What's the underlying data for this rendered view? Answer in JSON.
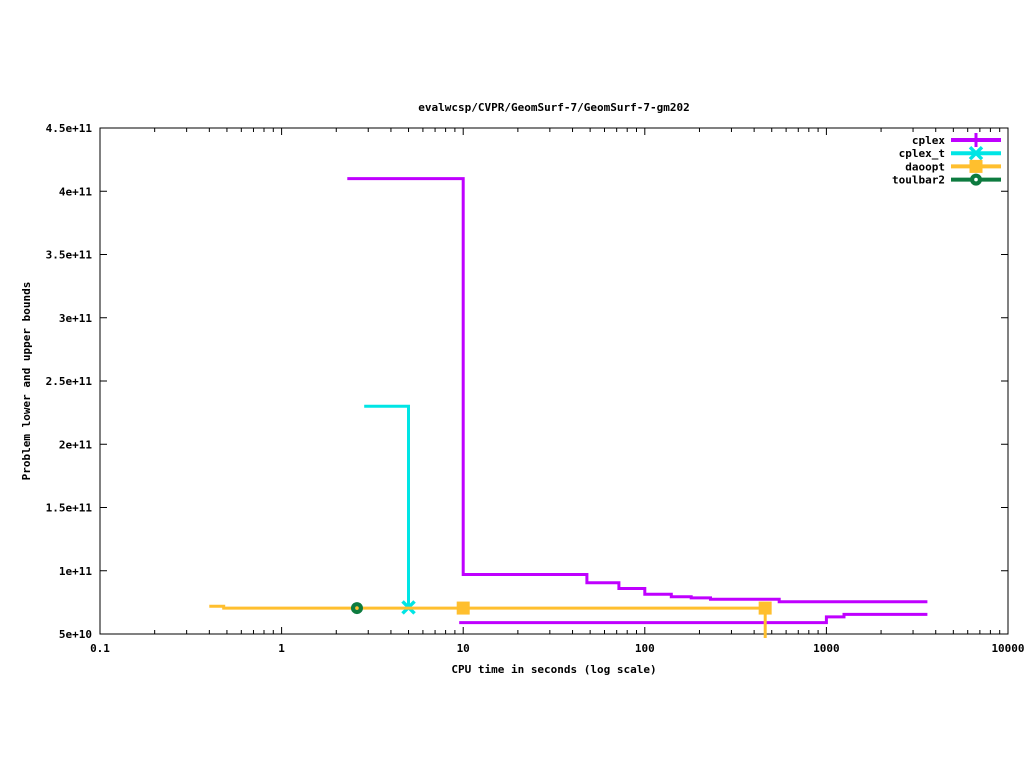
{
  "chart_data": {
    "type": "line",
    "title": "evalwcsp/CVPR/GeomSurf-7/GeomSurf-7-gm202",
    "xlabel": "CPU time in seconds (log scale)",
    "ylabel": "Problem lower and upper bounds",
    "x_scale": "log",
    "y_scale": "linear",
    "grid": false,
    "legend_position": "top-right-inside",
    "xlim": [
      0.1,
      10000
    ],
    "ylim": [
      50000000000.0,
      450000000000.0
    ],
    "x_ticks": [
      {
        "t": 0.1,
        "label": "0.1"
      },
      {
        "t": 1,
        "label": "1"
      },
      {
        "t": 10,
        "label": "10"
      },
      {
        "t": 100,
        "label": "100"
      },
      {
        "t": 1000,
        "label": "1000"
      },
      {
        "t": 10000,
        "label": "10000"
      }
    ],
    "y_ticks": [
      {
        "v": 50000000000.0,
        "label": "5e+10"
      },
      {
        "v": 100000000000.0,
        "label": "1e+11"
      },
      {
        "v": 150000000000.0,
        "label": "1.5e+11"
      },
      {
        "v": 200000000000.0,
        "label": "2e+11"
      },
      {
        "v": 250000000000.0,
        "label": "2.5e+11"
      },
      {
        "v": 300000000000.0,
        "label": "3e+11"
      },
      {
        "v": 350000000000.0,
        "label": "3.5e+11"
      },
      {
        "v": 400000000000.0,
        "label": "4e+11"
      },
      {
        "v": 450000000000.0,
        "label": "4.5e+11"
      }
    ],
    "series": [
      {
        "name": "cplex",
        "color": "#bf00ff",
        "marker": "plus",
        "lines": [
          [
            [
              2.3,
              410000000000.0
            ],
            [
              10,
              410000000000.0
            ],
            [
              10,
              97000000000.0
            ],
            [
              48,
              97000000000.0
            ],
            [
              48,
              90500000000.0
            ],
            [
              72,
              90500000000.0
            ],
            [
              72,
              86000000000.0
            ],
            [
              100,
              86000000000.0
            ],
            [
              100,
              81500000000.0
            ],
            [
              140,
              81500000000.0
            ],
            [
              140,
              79500000000.0
            ],
            [
              180,
              79500000000.0
            ],
            [
              180,
              78500000000.0
            ],
            [
              230,
              78500000000.0
            ],
            [
              230,
              77500000000.0
            ],
            [
              550,
              77500000000.0
            ],
            [
              550,
              75500000000.0
            ],
            [
              3600,
              75500000000.0
            ]
          ],
          [
            [
              9.5,
              59000000000.0
            ],
            [
              1000,
              59000000000.0
            ],
            [
              1000,
              63500000000.0
            ],
            [
              1250,
              63500000000.0
            ],
            [
              1250,
              65500000000.0
            ],
            [
              3600,
              65500000000.0
            ]
          ]
        ],
        "markers_at": []
      },
      {
        "name": "cplex_t",
        "color": "#00e5e5",
        "marker": "x",
        "lines": [
          [
            [
              2.85,
              230000000000.0
            ],
            [
              5,
              230000000000.0
            ],
            [
              5,
              71000000000.0
            ]
          ]
        ],
        "markers_at": [
          [
            5,
            71000000000.0
          ]
        ]
      },
      {
        "name": "daoopt",
        "color": "#ffbf2e",
        "marker": "square",
        "lines": [
          [
            [
              0.4,
              72000000000.0
            ],
            [
              0.48,
              72000000000.0
            ],
            [
              0.48,
              70500000000.0
            ],
            [
              460,
              70500000000.0
            ],
            [
              460,
              46800000000.0
            ]
          ]
        ],
        "markers_at": [
          [
            10,
            70500000000.0
          ],
          [
            460,
            70500000000.0
          ]
        ]
      },
      {
        "name": "toulbar2",
        "color": "#0d7b3f",
        "marker": "circle-dot",
        "center_color": "#ffbf2e",
        "lines": [],
        "markers_at": [
          [
            2.6,
            70500000000.0
          ]
        ]
      }
    ]
  }
}
